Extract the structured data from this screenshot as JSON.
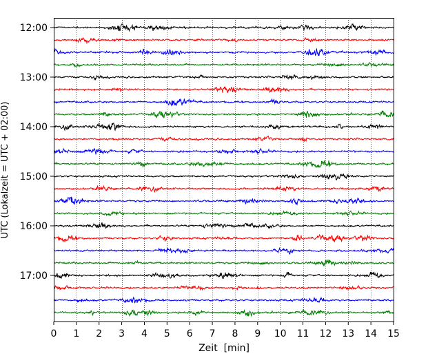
{
  "chart_data": {
    "type": "line",
    "title": "",
    "xlabel": "Zeit  [min]",
    "ylabel": "UTC (Lokalzeit = UTC + 02:00)",
    "xlim": [
      0,
      15
    ],
    "x_ticks": [
      0,
      1,
      2,
      3,
      4,
      5,
      6,
      7,
      8,
      9,
      10,
      11,
      12,
      13,
      14,
      15
    ],
    "x_tick_labels": [
      "0",
      "1",
      "2",
      "3",
      "4",
      "5",
      "6",
      "7",
      "8",
      "9",
      "10",
      "11",
      "12",
      "13",
      "14",
      "15"
    ],
    "y_tick_labels": [
      "12:00",
      "13:00",
      "14:00",
      "15:00",
      "16:00",
      "17:00"
    ],
    "grid": "vertical dotted",
    "trace_interval_min": 15,
    "trace_colors": [
      "#000000",
      "#ff0000",
      "#0000ff",
      "#008000"
    ],
    "series": [
      {
        "start": "12:00",
        "color": "#000000"
      },
      {
        "start": "12:15",
        "color": "#ff0000"
      },
      {
        "start": "12:30",
        "color": "#0000ff"
      },
      {
        "start": "12:45",
        "color": "#008000"
      },
      {
        "start": "13:00",
        "color": "#000000"
      },
      {
        "start": "13:15",
        "color": "#ff0000"
      },
      {
        "start": "13:30",
        "color": "#0000ff"
      },
      {
        "start": "13:45",
        "color": "#008000"
      },
      {
        "start": "14:00",
        "color": "#000000"
      },
      {
        "start": "14:15",
        "color": "#ff0000"
      },
      {
        "start": "14:30",
        "color": "#0000ff"
      },
      {
        "start": "14:45",
        "color": "#008000"
      },
      {
        "start": "15:00",
        "color": "#000000"
      },
      {
        "start": "15:15",
        "color": "#ff0000"
      },
      {
        "start": "15:30",
        "color": "#0000ff"
      },
      {
        "start": "15:45",
        "color": "#008000"
      },
      {
        "start": "16:00",
        "color": "#000000"
      },
      {
        "start": "16:15",
        "color": "#ff0000"
      },
      {
        "start": "16:30",
        "color": "#0000ff"
      },
      {
        "start": "16:45",
        "color": "#008000"
      },
      {
        "start": "17:00",
        "color": "#000000"
      },
      {
        "start": "17:15",
        "color": "#ff0000"
      },
      {
        "start": "17:30",
        "color": "#0000ff"
      },
      {
        "start": "17:45",
        "color": "#008000"
      }
    ]
  }
}
